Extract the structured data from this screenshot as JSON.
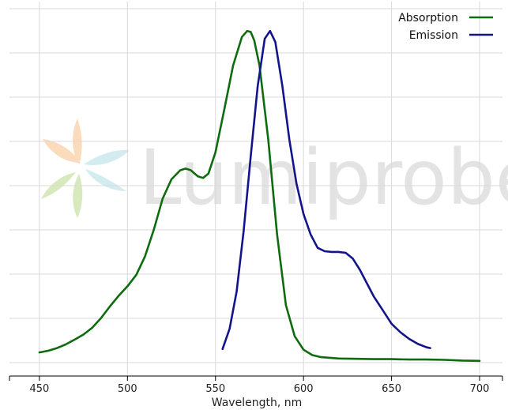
{
  "chart_data": {
    "type": "line",
    "title": "",
    "xlabel": "Wavelength, nm",
    "ylabel": "",
    "xlim": [
      433,
      713
    ],
    "ylim": [
      -0.03,
      1.08
    ],
    "x_ticks": [
      450,
      500,
      550,
      600,
      650,
      700
    ],
    "grid": true,
    "legend_position": "top-right",
    "watermark": "Lumiprobe",
    "series": [
      {
        "name": "Absorption",
        "color": "#0e6b0e",
        "x": [
          450,
          455,
          460,
          465,
          470,
          475,
          480,
          485,
          490,
          495,
          500,
          505,
          510,
          515,
          520,
          525,
          530,
          533,
          536,
          540,
          543,
          546,
          550,
          555,
          560,
          565,
          568,
          570,
          572,
          575,
          580,
          585,
          590,
          595,
          600,
          605,
          610,
          620,
          630,
          640,
          650,
          660,
          670,
          680,
          690,
          700
        ],
        "y": [
          0.04,
          0.045,
          0.053,
          0.064,
          0.078,
          0.093,
          0.113,
          0.142,
          0.176,
          0.208,
          0.236,
          0.27,
          0.325,
          0.404,
          0.496,
          0.553,
          0.58,
          0.585,
          0.58,
          0.562,
          0.557,
          0.57,
          0.633,
          0.76,
          0.89,
          0.975,
          0.993,
          0.99,
          0.965,
          0.89,
          0.67,
          0.39,
          0.18,
          0.088,
          0.048,
          0.032,
          0.026,
          0.022,
          0.021,
          0.02,
          0.02,
          0.019,
          0.019,
          0.018,
          0.016,
          0.015
        ]
      },
      {
        "name": "Emission",
        "color": "#14148a",
        "x": [
          554,
          558,
          562,
          566,
          570,
          574,
          578,
          581,
          584,
          588,
          592,
          596,
          600,
          604,
          608,
          612,
          616,
          620,
          624,
          628,
          632,
          636,
          640,
          645,
          650,
          655,
          660,
          665,
          670,
          672
        ],
        "y": [
          0.05,
          0.11,
          0.22,
          0.4,
          0.62,
          0.83,
          0.97,
          0.993,
          0.96,
          0.83,
          0.67,
          0.54,
          0.45,
          0.39,
          0.35,
          0.34,
          0.338,
          0.338,
          0.335,
          0.318,
          0.285,
          0.245,
          0.205,
          0.165,
          0.125,
          0.1,
          0.08,
          0.065,
          0.055,
          0.053
        ]
      }
    ]
  }
}
